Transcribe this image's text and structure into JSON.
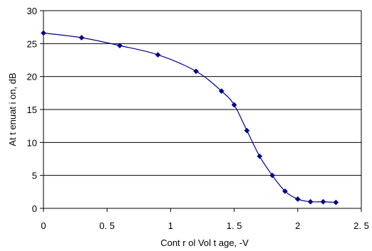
{
  "chart_data": {
    "type": "line",
    "xlabel": "Cont r ol  Vol t age,  -V",
    "ylabel": "At t enuat i on,  dB",
    "xlim": [
      0,
      2.5
    ],
    "ylim": [
      0,
      30
    ],
    "x_ticks": [
      0,
      0.5,
      1,
      1.5,
      2,
      2.5
    ],
    "x_tick_labels": [
      "0",
      "0. 5",
      "1",
      "1. 5",
      "2",
      "2. 5"
    ],
    "y_ticks": [
      0,
      5,
      10,
      15,
      20,
      25,
      30
    ],
    "y_tick_labels": [
      "0",
      "5",
      "10",
      "15",
      "20",
      "25",
      "30"
    ],
    "grid": "horizontal",
    "series": [
      {
        "color": "#00008B",
        "marker": "diamond",
        "smooth": true,
        "x": [
          0,
          0.3,
          0.6,
          0.9,
          1.2,
          1.4,
          1.5,
          1.6,
          1.7,
          1.8,
          1.9,
          2.0,
          2.1,
          2.2,
          2.3
        ],
        "y": [
          26.6,
          25.9,
          24.7,
          23.3,
          20.8,
          17.8,
          15.7,
          11.8,
          7.9,
          5.0,
          2.6,
          1.4,
          1.0,
          1.0,
          0.9
        ]
      }
    ]
  }
}
